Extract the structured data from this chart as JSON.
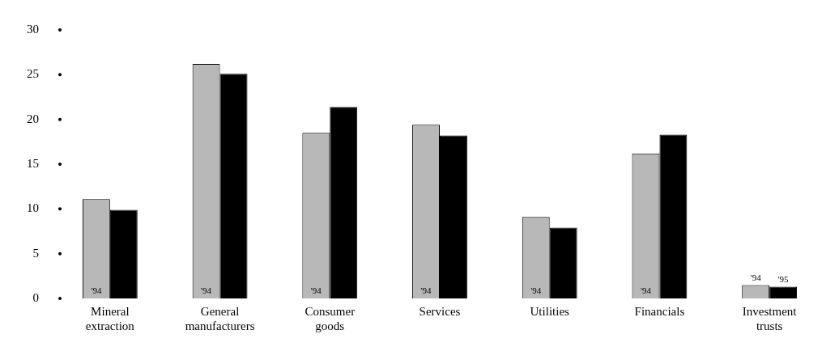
{
  "chart_data": {
    "type": "bar",
    "categories": [
      "Mineral\nextraction",
      "General\nmanufacturers",
      "Consumer\ngoods",
      "Services",
      "Utilities",
      "Financials",
      "Investment\ntrusts"
    ],
    "series": [
      {
        "name": "'94",
        "color": "#b8b8b8",
        "values": [
          11.1,
          26.2,
          18.5,
          19.4,
          9.1,
          16.2,
          1.5
        ]
      },
      {
        "name": "'95",
        "color": "#000000",
        "values": [
          9.9,
          25.1,
          21.4,
          18.2,
          7.9,
          18.3,
          1.3
        ]
      }
    ],
    "ylim": [
      0,
      30
    ],
    "yticks": [
      0,
      5,
      10,
      15,
      20,
      25,
      30
    ],
    "grid": false,
    "legend": false
  }
}
